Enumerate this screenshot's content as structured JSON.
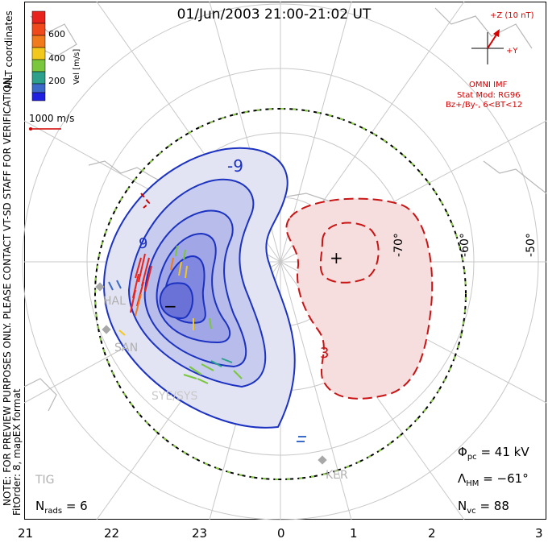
{
  "title": "01/Jun/2003 21:00-21:02 UT",
  "colorbar": {
    "label": "Vel [m/s]",
    "ticks": [
      "600",
      "400",
      "200"
    ],
    "colors": [
      "#e8221c",
      "#f07a1c",
      "#f2c81c",
      "#7ac63c",
      "#2ca08a",
      "#3c6ac8",
      "#2020e0"
    ]
  },
  "coord_system": "MLT coordinates",
  "velocity_scale": "1000 m/s",
  "imf": {
    "z_label": "+Z (10 nT)",
    "y_label": "+Y",
    "source": "OMNI IMF",
    "model": "Stat Mod: RG96",
    "condition": "Bz+/By-, 6<BT<12"
  },
  "notice_line1": "NOTE: FOR PREVIEW PURPOSES ONLY. PLEASE CONTACT VT-SD STAFF FOR VERIFICATION.",
  "notice_line2": "FitOrder: 8, mapEX format",
  "stats": {
    "nrads_label": "N",
    "nrads_sub": "rads",
    "nrads_value": "= 6",
    "phi_label": "Φ",
    "phi_sub": "pc",
    "phi_value": "= 41 kV",
    "lambda_label": "Λ",
    "lambda_sub": "HM",
    "lambda_value": "= −61°",
    "nvc_label": "N",
    "nvc_sub": "vc",
    "nvc_value": "= 88"
  },
  "mlt_ticks": [
    "21",
    "22",
    "23",
    "0",
    "1",
    "2",
    "3"
  ],
  "lat_labels": [
    "-70°",
    "-60°",
    "-50°"
  ],
  "stations": [
    "HAL",
    "SAN",
    "SYE/SYS",
    "TIG",
    "KER"
  ],
  "contours": {
    "neg_label": "-9",
    "neg_label2": "9",
    "pos_label": "3",
    "min_marker": "−",
    "max_marker": "+"
  }
}
